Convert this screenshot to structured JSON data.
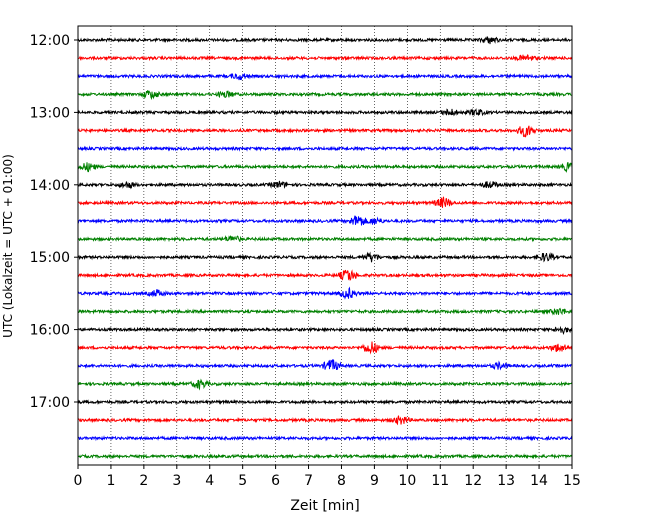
{
  "chart_data": {
    "type": "line",
    "title": "",
    "xlabel": "Zeit  [min]",
    "ylabel": "UTC (Lokalzeit = UTC + 01:00)",
    "xlim": [
      0,
      15
    ],
    "x_ticks": [
      0,
      1,
      2,
      3,
      4,
      5,
      6,
      7,
      8,
      9,
      10,
      11,
      12,
      13,
      14,
      15
    ],
    "x_grid": true,
    "y_ticks": [
      "12:00",
      "13:00",
      "14:00",
      "15:00",
      "16:00",
      "17:00"
    ],
    "time_start": "12:00",
    "trace_interval_minutes": 15,
    "color_cycle": [
      "#000000",
      "#ff0000",
      "#0000ff",
      "#008000"
    ],
    "traces": [
      {
        "start": "12:00",
        "color": "#000000",
        "events": [
          {
            "x": 12.5,
            "amp": 3
          }
        ]
      },
      {
        "start": "12:15",
        "color": "#ff0000",
        "events": [
          {
            "x": 13.6,
            "amp": 3
          }
        ]
      },
      {
        "start": "12:30",
        "color": "#0000ff",
        "events": [
          {
            "x": 4.9,
            "amp": 3
          }
        ]
      },
      {
        "start": "12:45",
        "color": "#008000",
        "events": [
          {
            "x": 2.2,
            "amp": 4
          },
          {
            "x": 4.5,
            "amp": 3
          }
        ]
      },
      {
        "start": "13:00",
        "color": "#000000",
        "events": [
          {
            "x": 11.3,
            "amp": 3
          },
          {
            "x": 12.1,
            "amp": 3
          }
        ]
      },
      {
        "start": "13:15",
        "color": "#ff0000",
        "events": [
          {
            "x": 13.6,
            "amp": 6
          }
        ]
      },
      {
        "start": "13:30",
        "color": "#0000ff",
        "events": []
      },
      {
        "start": "13:45",
        "color": "#008000",
        "events": [
          {
            "x": 0.3,
            "amp": 4
          },
          {
            "x": 14.9,
            "amp": 4
          }
        ]
      },
      {
        "start": "14:00",
        "color": "#000000",
        "events": [
          {
            "x": 1.5,
            "amp": 3
          },
          {
            "x": 6.1,
            "amp": 3
          },
          {
            "x": 12.5,
            "amp": 3
          }
        ]
      },
      {
        "start": "14:15",
        "color": "#ff0000",
        "events": [
          {
            "x": 11.1,
            "amp": 5
          }
        ]
      },
      {
        "start": "14:30",
        "color": "#0000ff",
        "events": [
          {
            "x": 8.5,
            "amp": 6
          },
          {
            "x": 9.0,
            "amp": 3
          }
        ]
      },
      {
        "start": "14:45",
        "color": "#008000",
        "events": [
          {
            "x": 4.7,
            "amp": 3
          }
        ]
      },
      {
        "start": "15:00",
        "color": "#000000",
        "events": [
          {
            "x": 8.9,
            "amp": 4
          },
          {
            "x": 14.2,
            "amp": 4
          }
        ]
      },
      {
        "start": "15:15",
        "color": "#ff0000",
        "events": [
          {
            "x": 8.2,
            "amp": 6
          }
        ]
      },
      {
        "start": "15:30",
        "color": "#0000ff",
        "events": [
          {
            "x": 8.2,
            "amp": 5
          },
          {
            "x": 2.4,
            "amp": 3
          }
        ]
      },
      {
        "start": "15:45",
        "color": "#008000",
        "events": [
          {
            "x": 14.6,
            "amp": 3
          }
        ]
      },
      {
        "start": "16:00",
        "color": "#000000",
        "events": [
          {
            "x": 14.7,
            "amp": 3
          }
        ]
      },
      {
        "start": "16:15",
        "color": "#ff0000",
        "events": [
          {
            "x": 8.9,
            "amp": 6
          },
          {
            "x": 14.6,
            "amp": 4
          }
        ]
      },
      {
        "start": "16:30",
        "color": "#0000ff",
        "events": [
          {
            "x": 7.7,
            "amp": 6
          },
          {
            "x": 12.8,
            "amp": 3
          }
        ]
      },
      {
        "start": "16:45",
        "color": "#008000",
        "events": [
          {
            "x": 3.7,
            "amp": 4
          }
        ]
      },
      {
        "start": "17:00",
        "color": "#000000",
        "events": []
      },
      {
        "start": "17:15",
        "color": "#ff0000",
        "events": [
          {
            "x": 9.8,
            "amp": 4
          }
        ]
      },
      {
        "start": "17:30",
        "color": "#0000ff",
        "events": []
      },
      {
        "start": "17:45",
        "color": "#008000",
        "events": []
      }
    ]
  }
}
